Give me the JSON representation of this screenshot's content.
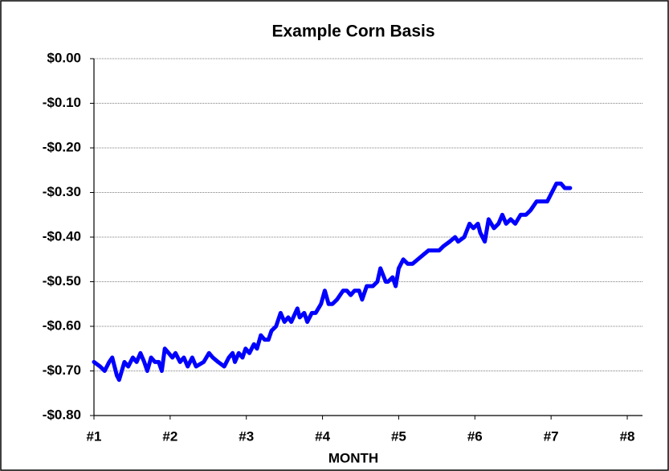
{
  "chart_data": {
    "type": "line",
    "title": "Example Corn Basis",
    "x_label": "MONTH",
    "x": [
      1.0,
      1.08,
      1.14,
      1.2,
      1.24,
      1.3,
      1.33,
      1.4,
      1.45,
      1.51,
      1.56,
      1.61,
      1.66,
      1.7,
      1.75,
      1.8,
      1.85,
      1.89,
      1.93,
      1.98,
      2.03,
      2.07,
      2.13,
      2.18,
      2.23,
      2.29,
      2.34,
      2.44,
      2.51,
      2.56,
      2.63,
      2.71,
      2.77,
      2.82,
      2.85,
      2.9,
      2.95,
      2.99,
      3.04,
      3.1,
      3.14,
      3.19,
      3.24,
      3.29,
      3.33,
      3.39,
      3.45,
      3.5,
      3.55,
      3.59,
      3.67,
      3.7,
      3.76,
      3.8,
      3.86,
      3.91,
      3.98,
      4.03,
      4.08,
      4.13,
      4.19,
      4.27,
      4.32,
      4.37,
      4.42,
      4.48,
      4.52,
      4.58,
      4.66,
      4.72,
      4.76,
      4.83,
      4.86,
      4.92,
      4.96,
      5.0,
      5.06,
      5.12,
      5.18,
      5.25,
      5.32,
      5.39,
      5.47,
      5.53,
      5.59,
      5.67,
      5.74,
      5.78,
      5.86,
      5.93,
      5.98,
      6.04,
      6.07,
      6.13,
      6.18,
      6.25,
      6.31,
      6.36,
      6.41,
      6.47,
      6.53,
      6.6,
      6.67,
      6.73,
      6.81,
      6.88,
      6.95,
      7.01,
      7.07,
      7.13,
      7.18,
      7.25
    ],
    "values": [
      -0.68,
      -0.69,
      -0.7,
      -0.68,
      -0.67,
      -0.71,
      -0.72,
      -0.68,
      -0.69,
      -0.67,
      -0.68,
      -0.66,
      -0.68,
      -0.7,
      -0.67,
      -0.68,
      -0.68,
      -0.7,
      -0.65,
      -0.66,
      -0.67,
      -0.66,
      -0.68,
      -0.67,
      -0.69,
      -0.67,
      -0.69,
      -0.68,
      -0.66,
      -0.67,
      -0.68,
      -0.69,
      -0.67,
      -0.66,
      -0.68,
      -0.66,
      -0.67,
      -0.65,
      -0.66,
      -0.64,
      -0.65,
      -0.62,
      -0.63,
      -0.63,
      -0.61,
      -0.6,
      -0.57,
      -0.59,
      -0.58,
      -0.59,
      -0.56,
      -0.58,
      -0.57,
      -0.59,
      -0.57,
      -0.57,
      -0.55,
      -0.52,
      -0.55,
      -0.55,
      -0.54,
      -0.52,
      -0.52,
      -0.53,
      -0.52,
      -0.52,
      -0.54,
      -0.51,
      -0.51,
      -0.5,
      -0.47,
      -0.5,
      -0.5,
      -0.49,
      -0.51,
      -0.47,
      -0.45,
      -0.46,
      -0.46,
      -0.45,
      -0.44,
      -0.43,
      -0.43,
      -0.43,
      -0.42,
      -0.41,
      -0.4,
      -0.41,
      -0.4,
      -0.37,
      -0.38,
      -0.37,
      -0.39,
      -0.41,
      -0.36,
      -0.38,
      -0.37,
      -0.35,
      -0.37,
      -0.36,
      -0.37,
      -0.35,
      -0.35,
      -0.34,
      -0.32,
      -0.32,
      -0.32,
      -0.3,
      -0.28,
      -0.28,
      -0.29,
      -0.29
    ],
    "color": "#0000ff",
    "xlim": [
      1,
      8.2
    ],
    "xticks": [
      {
        "value": 1,
        "label": "#1"
      },
      {
        "value": 2,
        "label": "#2"
      },
      {
        "value": 3,
        "label": "#3"
      },
      {
        "value": 4,
        "label": "#4"
      },
      {
        "value": 5,
        "label": "#5"
      },
      {
        "value": 6,
        "label": "#6"
      },
      {
        "value": 7,
        "label": "#7"
      },
      {
        "value": 8,
        "label": "#8"
      }
    ],
    "ylim": [
      -0.8,
      0
    ],
    "yticks": [
      {
        "value": 0,
        "label": "$0.00"
      },
      {
        "value": -0.1,
        "label": "-$0.10"
      },
      {
        "value": -0.2,
        "label": "-$0.20"
      },
      {
        "value": -0.3,
        "label": "-$0.30"
      },
      {
        "value": -0.4,
        "label": "-$0.40"
      },
      {
        "value": -0.5,
        "label": "-$0.50"
      },
      {
        "value": -0.6,
        "label": "-$0.60"
      },
      {
        "value": -0.7,
        "label": "-$0.70"
      },
      {
        "value": -0.8,
        "label": "-$0.80"
      }
    ],
    "grid": true
  }
}
